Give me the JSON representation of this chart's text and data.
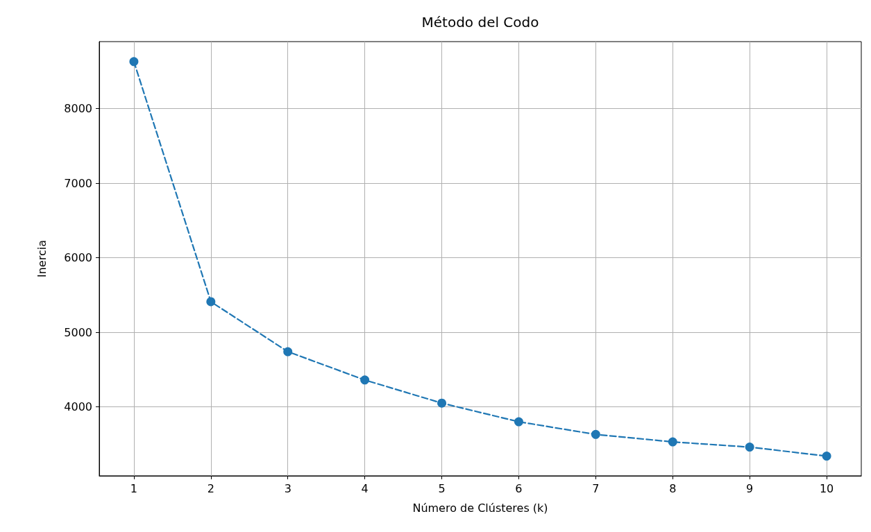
{
  "chart_data": {
    "type": "line",
    "title": "Método del Codo",
    "xlabel": "Número de Clústeres (k)",
    "ylabel": "Inercia",
    "x": [
      1,
      2,
      3,
      4,
      5,
      6,
      7,
      8,
      9,
      10
    ],
    "series": [
      {
        "color": "#1f77b4",
        "values": [
          8630,
          5410,
          4740,
          4360,
          4050,
          3800,
          3630,
          3530,
          3460,
          3340
        ]
      }
    ],
    "xlim": [
      0.55,
      10.45
    ],
    "xticks": [
      1,
      2,
      3,
      4,
      5,
      6,
      7,
      8,
      9,
      10
    ],
    "ylim": [
      3075,
      8898
    ],
    "yticks": [
      4000,
      5000,
      6000,
      7000,
      8000
    ],
    "grid": true,
    "marker": "circle",
    "line_style": "dashed"
  }
}
